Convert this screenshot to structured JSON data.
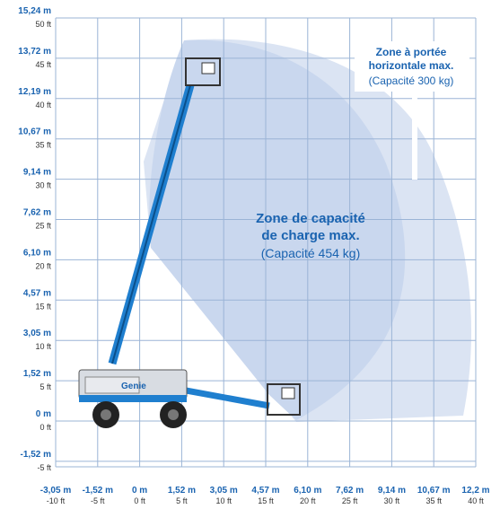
{
  "y_axis": {
    "ticks": [
      {
        "m": "15,24 m",
        "ft": "50 ft"
      },
      {
        "m": "13,72 m",
        "ft": "45 ft"
      },
      {
        "m": "12,19 m",
        "ft": "40 ft"
      },
      {
        "m": "10,67 m",
        "ft": "35 ft"
      },
      {
        "m": "9,14 m",
        "ft": "30 ft"
      },
      {
        "m": "7,62 m",
        "ft": "25 ft"
      },
      {
        "m": "6,10 m",
        "ft": "20 ft"
      },
      {
        "m": "4,57 m",
        "ft": "15 ft"
      },
      {
        "m": "3,05 m",
        "ft": "10 ft"
      },
      {
        "m": "1,52 m",
        "ft": "5 ft"
      },
      {
        "m": "0 m",
        "ft": "0 ft"
      },
      {
        "m": "-1,52 m",
        "ft": "-5 ft"
      }
    ]
  },
  "x_axis": {
    "ticks": [
      {
        "m": "-3,05 m",
        "ft": "-10 ft"
      },
      {
        "m": "-1,52 m",
        "ft": "-5 ft"
      },
      {
        "m": "0 m",
        "ft": "0 ft"
      },
      {
        "m": "1,52 m",
        "ft": "5 ft"
      },
      {
        "m": "3,05 m",
        "ft": "10 ft"
      },
      {
        "m": "4,57 m",
        "ft": "15 ft"
      },
      {
        "m": "6,10 m",
        "ft": "20 ft"
      },
      {
        "m": "7,62 m",
        "ft": "25 ft"
      },
      {
        "m": "9,14 m",
        "ft": "30 ft"
      },
      {
        "m": "10,67 m",
        "ft": "35 ft"
      },
      {
        "m": "12,2 m",
        "ft": "40 ft"
      }
    ]
  },
  "zones": {
    "horizontal": {
      "title": [
        "Zone à portée",
        "horizontale max."
      ],
      "capacity": "(Capacité 300 kg)"
    },
    "max_load": {
      "title": [
        "Zone de capacité",
        "de charge max."
      ],
      "capacity": "(Capacité 454 kg)"
    }
  },
  "machine": {
    "brand": "Genie"
  }
}
